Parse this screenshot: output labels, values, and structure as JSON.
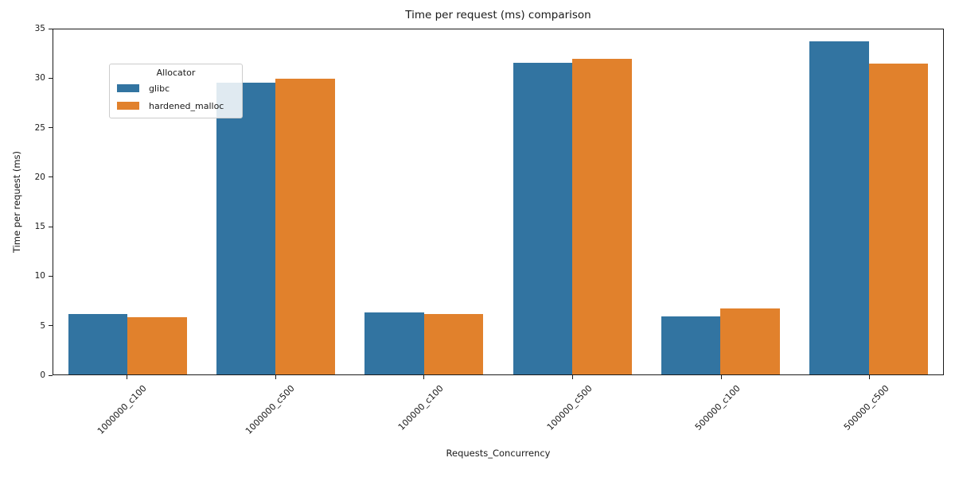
{
  "chart_data": {
    "type": "bar",
    "title": "Time per request (ms) comparison",
    "xlabel": "Requests_Concurrency",
    "ylabel": "Time per request (ms)",
    "categories": [
      "1000000_c100",
      "1000000_c500",
      "100000_c100",
      "100000_c500",
      "500000_c100",
      "500000_c500"
    ],
    "series": [
      {
        "name": "glibc",
        "color": "#3274a1",
        "values": [
          6.1,
          29.6,
          6.3,
          31.6,
          5.9,
          33.8
        ]
      },
      {
        "name": "hardened_malloc",
        "color": "#e1812c",
        "values": [
          5.8,
          30.0,
          6.1,
          32.0,
          6.7,
          31.5
        ]
      }
    ],
    "ylim": [
      0,
      35
    ],
    "yticks": [
      0,
      5,
      10,
      15,
      20,
      25,
      30,
      35
    ],
    "legend": {
      "title": "Allocator",
      "position": "upper left"
    },
    "grid": false,
    "plot_background": "#ffffff",
    "axis_color": "#1a1a1a"
  }
}
